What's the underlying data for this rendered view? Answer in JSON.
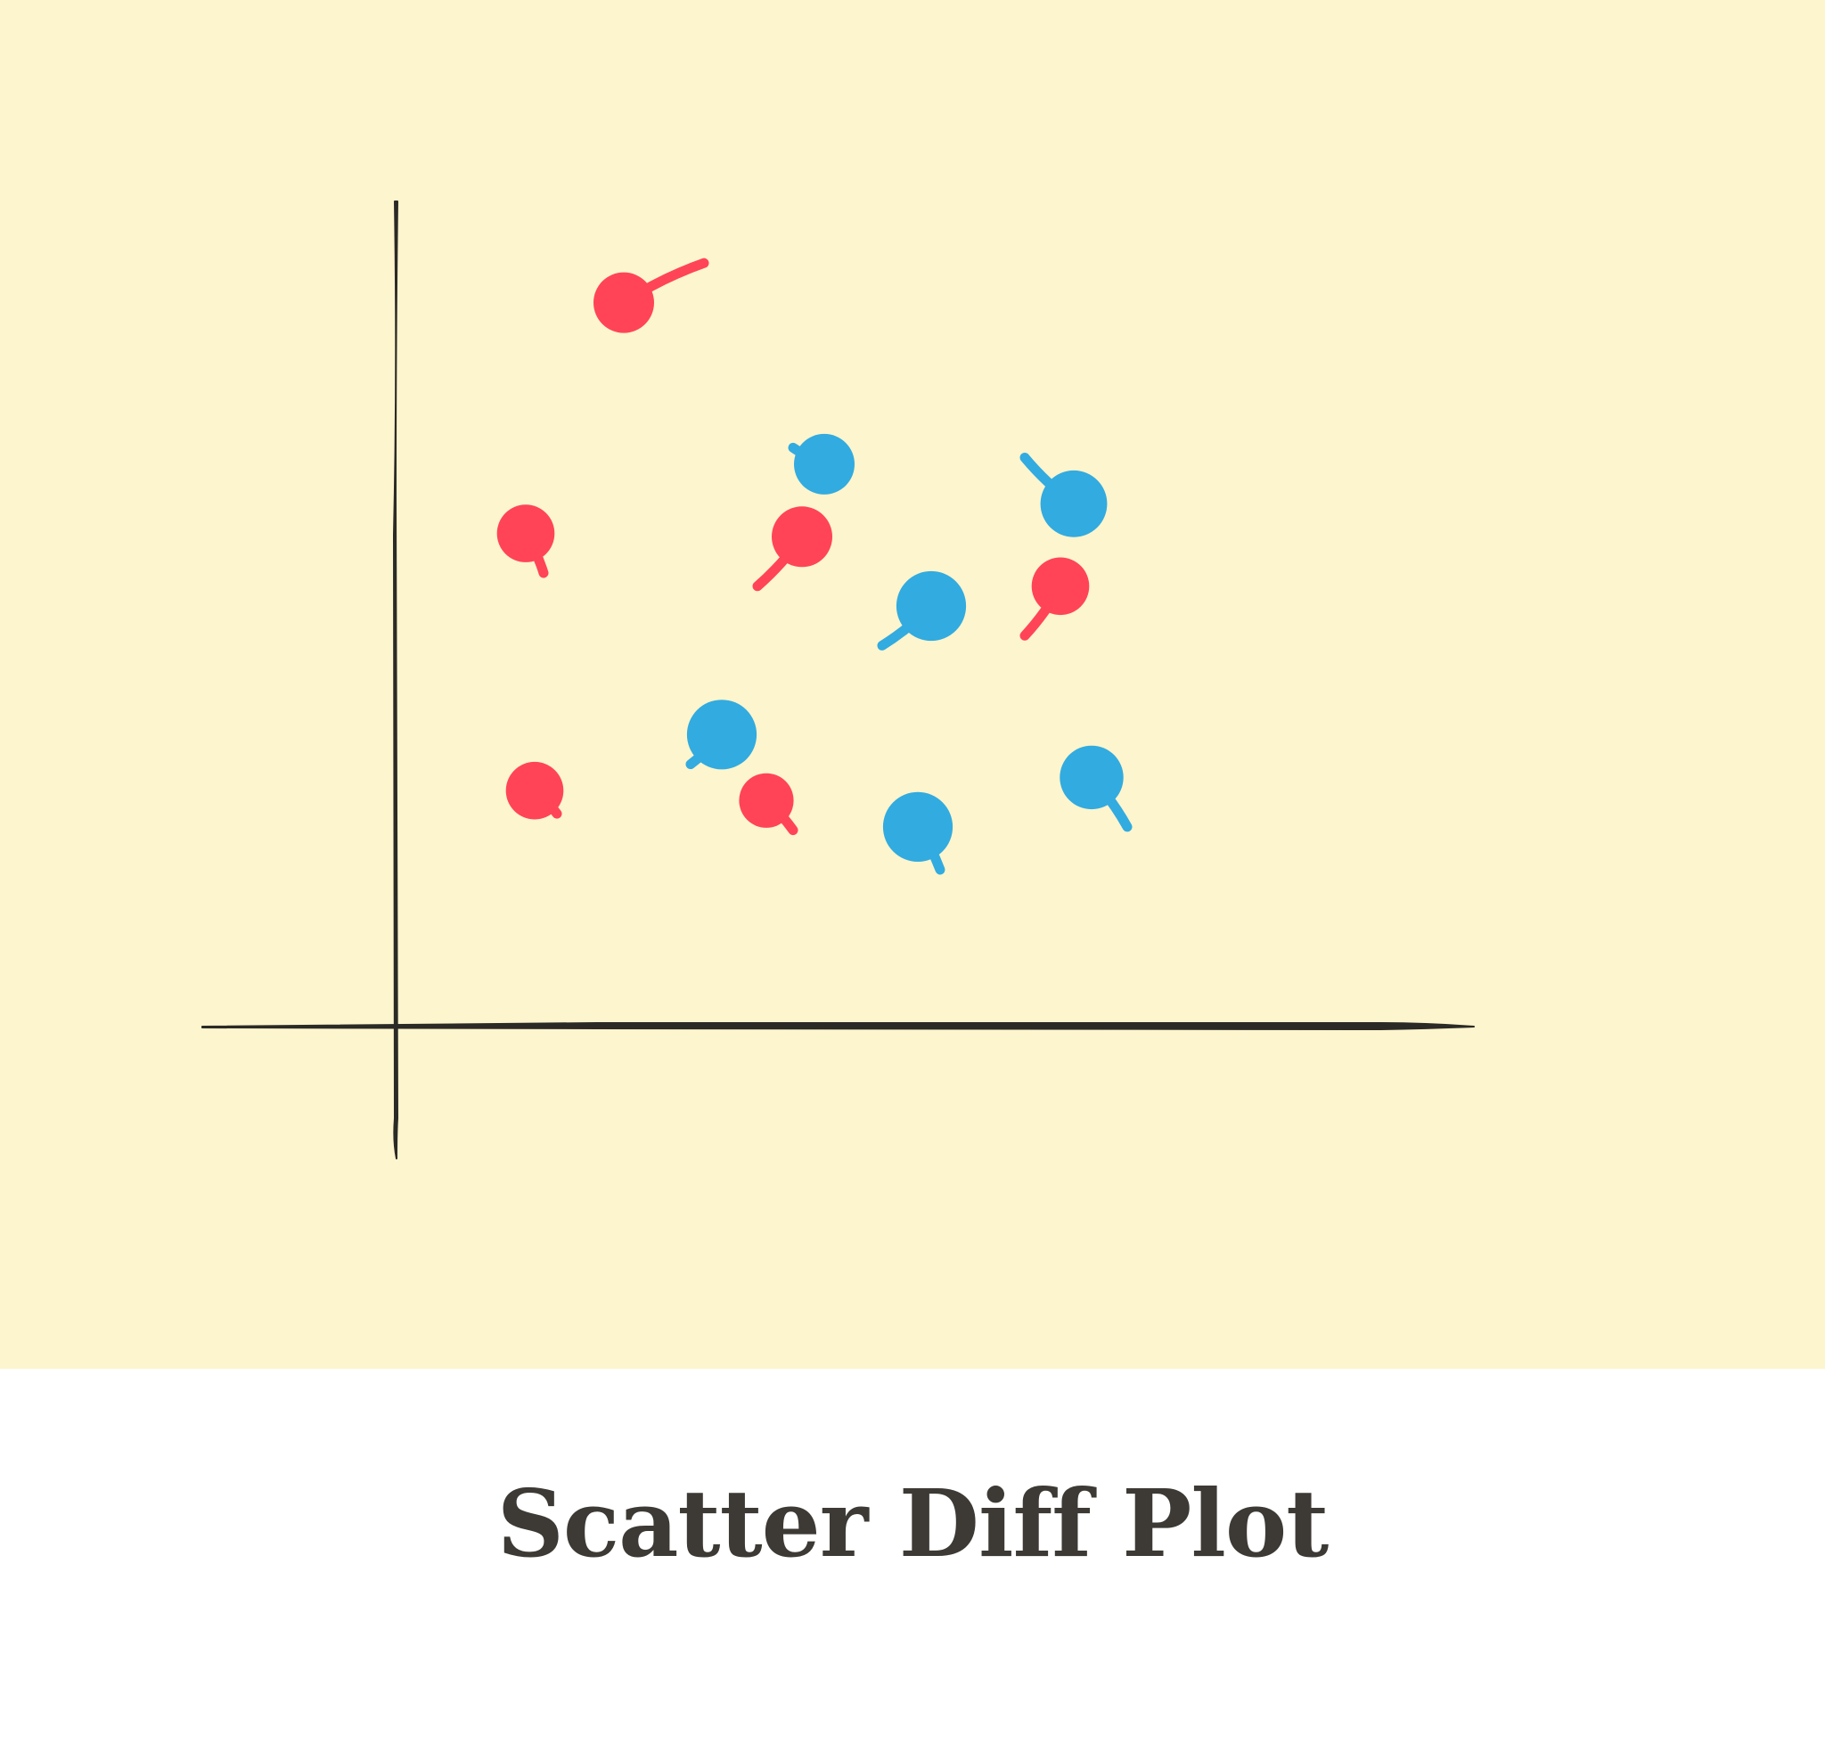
{
  "caption": "Scatter Diff Plot",
  "colors": {
    "background": "#fdf5cd",
    "axis": "#2b2a26",
    "red": "#ff4458",
    "blue": "#32abe0",
    "caption": "#3d3a35"
  },
  "chart_data": {
    "type": "scatter",
    "style": "hand-drawn",
    "title": "",
    "xlabel": "",
    "ylabel": "",
    "xlim": [
      0,
      100
    ],
    "ylim": [
      0,
      100
    ],
    "grid": false,
    "tick_labels": false,
    "legend": "none",
    "series": [
      {
        "color": "red",
        "points": [
          {
            "x": 17,
            "y": 96,
            "tail_x": 26,
            "tail_y": 102,
            "size": 1.0
          },
          {
            "x": 6,
            "y": 61,
            "tail_x": 8,
            "tail_y": 55,
            "size": 0.95
          },
          {
            "x": 37,
            "y": 60.5,
            "tail_x": 32,
            "tail_y": 53,
            "size": 1.0
          },
          {
            "x": 66,
            "y": 53,
            "tail_x": 62,
            "tail_y": 45.5,
            "size": 0.95
          },
          {
            "x": 7,
            "y": 22,
            "tail_x": 9.5,
            "tail_y": 18.5,
            "size": 0.95
          },
          {
            "x": 33,
            "y": 20.5,
            "tail_x": 36,
            "tail_y": 16,
            "size": 0.9
          }
        ]
      },
      {
        "color": "blue",
        "points": [
          {
            "x": 39.5,
            "y": 71.5,
            "tail_x": 36,
            "tail_y": 74,
            "size": 1.0
          },
          {
            "x": 67.5,
            "y": 65.5,
            "tail_x": 62,
            "tail_y": 72.5,
            "size": 1.1
          },
          {
            "x": 51.5,
            "y": 50,
            "tail_x": 46,
            "tail_y": 44,
            "size": 1.15
          },
          {
            "x": 28,
            "y": 30.5,
            "tail_x": 24.5,
            "tail_y": 26,
            "size": 1.15
          },
          {
            "x": 69.5,
            "y": 24,
            "tail_x": 73.5,
            "tail_y": 16.5,
            "size": 1.05
          },
          {
            "x": 50,
            "y": 16.5,
            "tail_x": 52.5,
            "tail_y": 10,
            "size": 1.15
          }
        ]
      }
    ]
  }
}
